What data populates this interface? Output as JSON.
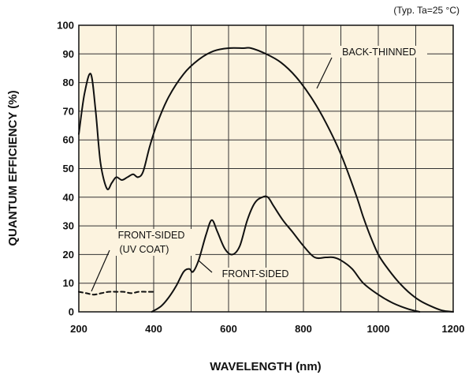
{
  "chart_data": {
    "type": "line",
    "title": "",
    "note": "(Typ. Ta=25 °C)",
    "xlabel": "WAVELENGTH (nm)",
    "ylabel": "QUANTUM EFFICIENCY (%)",
    "xlim": [
      200,
      1200
    ],
    "ylim": [
      0,
      100
    ],
    "x_ticks": [
      200,
      400,
      600,
      800,
      1000,
      1200
    ],
    "y_ticks": [
      0,
      10,
      20,
      30,
      40,
      50,
      60,
      70,
      80,
      90,
      100
    ],
    "grid": true,
    "background": "#fcf3df",
    "line_color": "#111111",
    "series": [
      {
        "name": "BACK-THINNED",
        "style": "solid",
        "x": [
          200,
          215,
          232,
          245,
          258,
          275,
          288,
          300,
          315,
          330,
          345,
          358,
          372,
          390,
          410,
          440,
          480,
          520,
          560,
          600,
          640,
          660,
          700,
          740,
          780,
          820,
          860,
          900,
          940,
          960,
          980,
          1000,
          1020,
          1050,
          1080,
          1110,
          1140,
          1170,
          1200
        ],
        "y": [
          62,
          76,
          83,
          70,
          52,
          43,
          45,
          47,
          46,
          47,
          48,
          47,
          49,
          58,
          66,
          75,
          83,
          88,
          91,
          92,
          92,
          92,
          90,
          87,
          82,
          75,
          66,
          55,
          41,
          33,
          26,
          20,
          16,
          11,
          7,
          4,
          2,
          0.5,
          0
        ]
      },
      {
        "name": "FRONT-SIDED",
        "style": "solid",
        "x": [
          395,
          420,
          440,
          460,
          480,
          495,
          505,
          520,
          540,
          555,
          570,
          590,
          610,
          630,
          650,
          670,
          690,
          705,
          720,
          745,
          770,
          800,
          830,
          860,
          880,
          900,
          930,
          960,
          1000,
          1040,
          1080,
          1110
        ],
        "y": [
          0,
          2,
          5,
          9,
          14,
          15,
          14,
          18,
          27,
          32,
          28,
          22,
          20,
          23,
          32,
          38,
          40,
          40,
          37,
          32,
          28,
          23,
          19,
          19,
          19,
          18,
          15,
          10,
          6,
          3,
          1,
          0
        ]
      },
      {
        "name": "FRONT-SIDED (UV COAT)",
        "style": "dashed",
        "x": [
          200,
          220,
          240,
          260,
          280,
          300,
          320,
          340,
          360,
          380,
          400
        ],
        "y": [
          7,
          6.5,
          6,
          6.5,
          7,
          7,
          7,
          6.5,
          7,
          7,
          7
        ]
      }
    ],
    "annotations": [
      {
        "text": "BACK-THINNED",
        "series": "BACK-THINNED"
      },
      {
        "text": "FRONT-SIDED",
        "series": "FRONT-SIDED"
      },
      {
        "text_lines": [
          "FRONT-SIDED",
          "(UV COAT)"
        ],
        "series": "FRONT-SIDED (UV COAT)"
      }
    ]
  }
}
